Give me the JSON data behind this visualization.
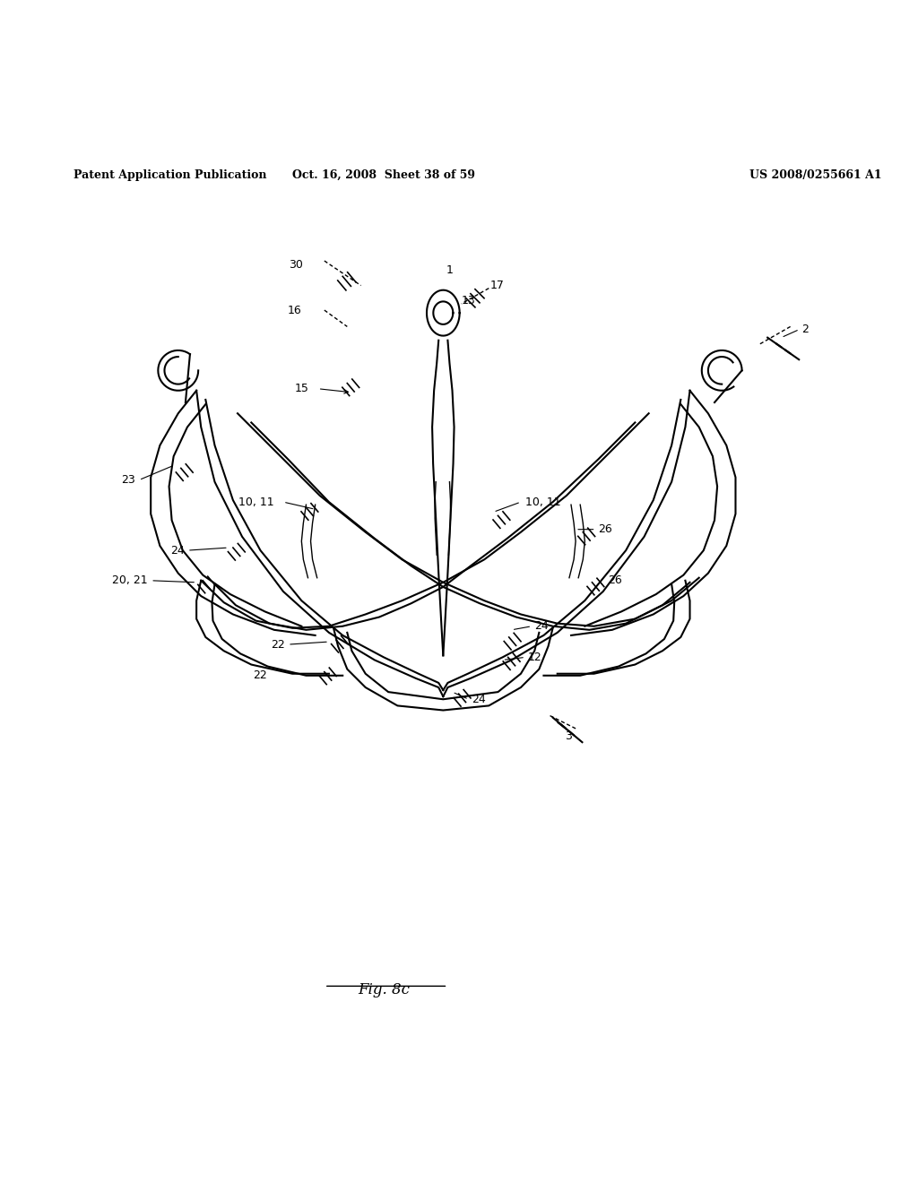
{
  "header_left": "Patent Application Publication",
  "header_center": "Oct. 16, 2008  Sheet 38 of 59",
  "header_right": "US 2008/0255661 A1",
  "figure_label": "Fig. 8c",
  "background_color": "#ffffff",
  "line_color": "#000000"
}
